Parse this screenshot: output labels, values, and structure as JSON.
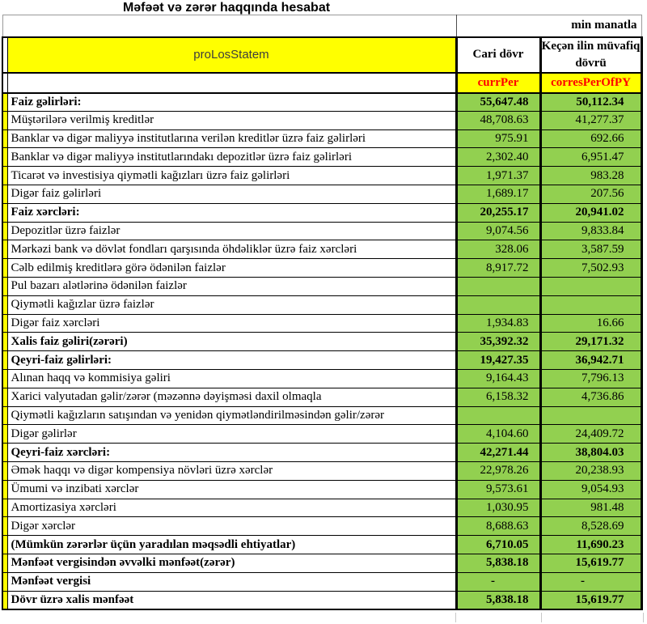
{
  "title": "Məfəət və zərər haqqında hesabat",
  "units_note": "min manatla",
  "colors": {
    "header_fill": "#ffff00",
    "value_fill": "#92d050",
    "code_text": "#ff0000",
    "border": "#000000"
  },
  "table": {
    "name_cell": "proLosStatem",
    "col_headers": [
      "Cari dövr",
      "Keçən ilin müvafiq dövrü"
    ],
    "code_headers": [
      "currPer",
      "corresPerOfPY"
    ],
    "rows": [
      {
        "label": "Faiz gəlirləri:",
        "curr": "55,647.48",
        "prev": "50,112.34",
        "bold": true
      },
      {
        "label": "Müştərilərə verilmiş kreditlər",
        "curr": "48,708.63",
        "prev": "41,277.37",
        "bold": false
      },
      {
        "label": "Banklar və digər maliyyə institutlarına verilən kreditlər üzrə faiz gəlirləri",
        "curr": "975.91",
        "prev": "692.66",
        "bold": false
      },
      {
        "label": "Banklar və digər maliyyə institutlarındakı depozitlər üzrə faiz gəlirləri",
        "curr": "2,302.40",
        "prev": "6,951.47",
        "bold": false
      },
      {
        "label": "Ticarət və investisiya qiymətli kağızları üzrə faiz gəlirləri",
        "curr": "1,971.37",
        "prev": "983.28",
        "bold": false
      },
      {
        "label": "Digər faiz gəlirləri",
        "curr": "1,689.17",
        "prev": "207.56",
        "bold": false
      },
      {
        "label": "Faiz xərcləri:",
        "curr": "20,255.17",
        "prev": "20,941.02",
        "bold": true
      },
      {
        "label": "Depozitlər üzrə faizlər",
        "curr": "9,074.56",
        "prev": "9,833.84",
        "bold": false
      },
      {
        "label": "Mərkəzi bank və dövlət fondları qarşısında öhdəliklər üzrə faiz xərcləri",
        "curr": "328.06",
        "prev": "3,587.59",
        "bold": false
      },
      {
        "label": "Cəlb edilmiş kreditlərə görə ödənilən faizlər",
        "curr": "8,917.72",
        "prev": "7,502.93",
        "bold": false
      },
      {
        "label": "Pul bazarı alətlərinə ödənilən faizlər",
        "curr": "",
        "prev": "",
        "bold": false
      },
      {
        "label": "Qiymətli kağızlar üzrə faizlər",
        "curr": "",
        "prev": "",
        "bold": false
      },
      {
        "label": "Digər faiz xərcləri",
        "curr": "1,934.83",
        "prev": "16.66",
        "bold": false
      },
      {
        "label": "Xalis faiz gəliri(zərəri)",
        "curr": "35,392.32",
        "prev": "29,171.32",
        "bold": true
      },
      {
        "label": "Qeyri-faiz gəlirləri:",
        "curr": "19,427.35",
        "prev": "36,942.71",
        "bold": true
      },
      {
        "label": "Alınan haqq və kommisiya gəliri",
        "curr": "9,164.43",
        "prev": "7,796.13",
        "bold": false
      },
      {
        "label": "Xarici valyutadan gəlir/zərər (məzənnə dəyişməsi daxil olmaqla",
        "curr": "6,158.32",
        "prev": "4,736.86",
        "bold": false
      },
      {
        "label": "Qiymətli kağızların satışından və yenidən qiymətləndirilməsindən gəlir/zərər",
        "curr": "",
        "prev": "",
        "bold": false
      },
      {
        "label": "Digər gəlirlər",
        "curr": "4,104.60",
        "prev": "24,409.72",
        "bold": false
      },
      {
        "label": "Qeyri-faiz xərcləri:",
        "curr": "42,271.44",
        "prev": "38,804.03",
        "bold": true
      },
      {
        "label": "Əmək haqqı və digər kompensiya növləri üzrə xərclər",
        "curr": "22,978.26",
        "prev": "20,238.93",
        "bold": false
      },
      {
        "label": "Ümumi və inzibati xərclər",
        "curr": "9,573.61",
        "prev": "9,054.93",
        "bold": false
      },
      {
        "label": "Amortizasiya xərcləri",
        "curr": "1,030.95",
        "prev": "981.48",
        "bold": false
      },
      {
        "label": "Digər xərclər",
        "curr": "8,688.63",
        "prev": "8,528.69",
        "bold": false
      },
      {
        "label": "(Mümkün zərərlər üçün yaradılan məqsədli ehtiyatlar)",
        "curr": "6,710.05",
        "prev": "11,690.23",
        "bold": true
      },
      {
        "label": "Mənfəət vergisindən əvvəlki mənfəət(zərər)",
        "curr": "5,838.18",
        "prev": "15,619.77",
        "bold": true
      },
      {
        "label": "Mənfəət vergisi",
        "curr": "-",
        "prev": "-",
        "bold": true
      },
      {
        "label": "Dövr üzrə xalis mənfəət",
        "curr": "5,838.18",
        "prev": "15,619.77",
        "bold": true
      }
    ]
  }
}
